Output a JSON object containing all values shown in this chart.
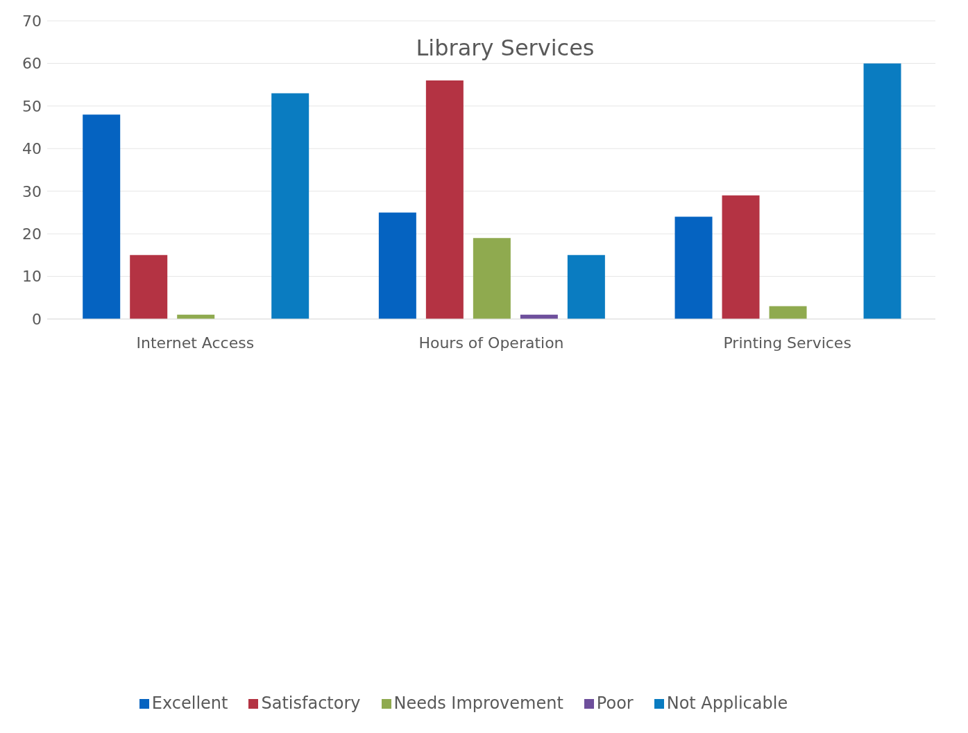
{
  "chart_data": {
    "type": "bar",
    "title": "Library Services",
    "categories": [
      "Internet Access",
      "Hours of Operation",
      "Printing Services"
    ],
    "series": [
      {
        "name": "Excellent",
        "color": "#0563c1",
        "values": [
          48,
          25,
          24
        ]
      },
      {
        "name": "Satisfactory",
        "color": "#b43343",
        "values": [
          15,
          56,
          29
        ]
      },
      {
        "name": "Needs Improvement",
        "color": "#8faa4f",
        "values": [
          1,
          19,
          3
        ]
      },
      {
        "name": "Poor",
        "color": "#6e4f9c",
        "values": [
          0,
          1,
          0
        ]
      },
      {
        "name": "Not Applicable",
        "color": "#0a7cc1",
        "values": [
          53,
          15,
          60
        ]
      }
    ],
    "ylim": [
      0,
      70
    ],
    "yticks": [
      0,
      10,
      20,
      30,
      40,
      50,
      60,
      70
    ],
    "grid": "y",
    "legend": "bottom"
  }
}
